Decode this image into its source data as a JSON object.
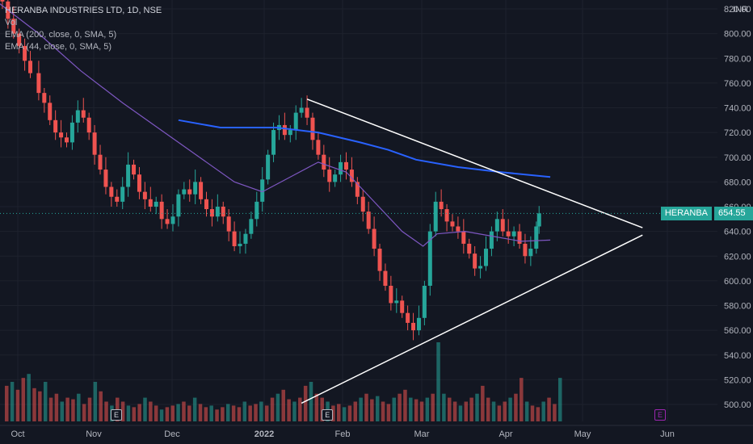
{
  "chart_data": {
    "type": "candlestick",
    "title": "HERANBA INDUSTRIES LTD, 1D, NSE",
    "volume_label": "Vol",
    "indicators": [
      {
        "label": "EMA (200, close, 0, SMA, 5)",
        "color": "#2962ff"
      },
      {
        "label": "EMA (44, close, 0, SMA, 5)",
        "color": "#7e57c2"
      }
    ],
    "currency": "INR",
    "last_price": 654.55,
    "symbol_label": "HERANBA",
    "y_ticks": [
      500,
      520,
      540,
      560,
      580,
      600,
      620,
      640,
      660,
      680,
      700,
      720,
      740,
      760,
      780,
      800,
      820
    ],
    "y_tick_labels": [
      "500.00",
      "520.00",
      "540.00",
      "560.00",
      "580.00",
      "600.00",
      "620.00",
      "640.00",
      "660.00",
      "680.00",
      "700.00",
      "720.00",
      "740.00",
      "760.00",
      "780.00",
      "800.00",
      "820.00"
    ],
    "x_labels": [
      "Oct",
      "Nov",
      "Dec",
      "2022",
      "Feb",
      "Mar",
      "Apr",
      "May",
      "Jun"
    ],
    "ylim": [
      488,
      826
    ],
    "colors": {
      "up": "#26a69a",
      "down": "#ef5350",
      "bg": "#131722",
      "grid": "#1e222d",
      "text": "#b2b5be"
    },
    "close_path": [
      [
        0,
        836
      ],
      [
        4,
        826
      ],
      [
        8,
        812
      ],
      [
        12,
        800
      ],
      [
        16,
        790
      ],
      [
        20,
        778
      ],
      [
        24,
        768
      ],
      [
        30,
        752
      ],
      [
        34,
        744
      ],
      [
        38,
        730
      ],
      [
        42,
        720
      ],
      [
        46,
        716
      ],
      [
        50,
        712
      ],
      [
        54,
        728
      ],
      [
        58,
        738
      ],
      [
        62,
        732
      ],
      [
        66,
        720
      ],
      [
        70,
        702
      ],
      [
        74,
        690
      ],
      [
        78,
        676
      ],
      [
        82,
        668
      ],
      [
        86,
        664
      ],
      [
        90,
        676
      ],
      [
        94,
        694
      ],
      [
        98,
        686
      ],
      [
        102,
        672
      ],
      [
        106,
        666
      ],
      [
        110,
        660
      ],
      [
        114,
        664
      ],
      [
        118,
        650
      ],
      [
        122,
        646
      ],
      [
        126,
        652
      ],
      [
        130,
        670
      ],
      [
        134,
        674
      ],
      [
        138,
        670
      ],
      [
        142,
        680
      ],
      [
        146,
        666
      ],
      [
        150,
        658
      ],
      [
        154,
        652
      ],
      [
        158,
        660
      ],
      [
        162,
        652
      ],
      [
        166,
        640
      ],
      [
        170,
        628
      ],
      [
        174,
        630
      ],
      [
        178,
        638
      ],
      [
        182,
        650
      ],
      [
        186,
        664
      ],
      [
        190,
        682
      ],
      [
        194,
        702
      ],
      [
        198,
        722
      ],
      [
        202,
        726
      ],
      [
        206,
        718
      ],
      [
        210,
        722
      ],
      [
        214,
        736
      ],
      [
        218,
        740
      ],
      [
        222,
        732
      ],
      [
        226,
        714
      ],
      [
        230,
        702
      ],
      [
        234,
        690
      ],
      [
        238,
        680
      ],
      [
        242,
        686
      ],
      [
        246,
        696
      ],
      [
        250,
        690
      ],
      [
        254,
        680
      ],
      [
        258,
        668
      ],
      [
        262,
        656
      ],
      [
        266,
        642
      ],
      [
        270,
        626
      ],
      [
        274,
        608
      ],
      [
        278,
        596
      ],
      [
        282,
        582
      ],
      [
        286,
        584
      ],
      [
        290,
        574
      ],
      [
        294,
        566
      ],
      [
        298,
        560
      ],
      [
        302,
        570
      ],
      [
        306,
        596
      ],
      [
        310,
        640
      ],
      [
        314,
        664
      ],
      [
        318,
        658
      ],
      [
        322,
        648
      ],
      [
        326,
        644
      ],
      [
        330,
        640
      ],
      [
        334,
        630
      ],
      [
        338,
        622
      ],
      [
        342,
        610
      ],
      [
        346,
        612
      ],
      [
        350,
        626
      ],
      [
        354,
        640
      ],
      [
        358,
        650
      ],
      [
        362,
        640
      ],
      [
        366,
        636
      ],
      [
        370,
        640
      ],
      [
        374,
        630
      ],
      [
        378,
        620
      ],
      [
        382,
        626
      ],
      [
        386,
        644
      ],
      [
        388,
        654.55
      ]
    ],
    "ema200": [
      [
        130,
        730
      ],
      [
        160,
        724
      ],
      [
        200,
        724
      ],
      [
        230,
        720
      ],
      [
        260,
        712
      ],
      [
        280,
        706
      ],
      [
        300,
        698
      ],
      [
        330,
        692
      ],
      [
        360,
        688
      ],
      [
        396,
        684
      ]
    ],
    "ema44": [
      [
        0,
        826
      ],
      [
        30,
        800
      ],
      [
        60,
        770
      ],
      [
        90,
        744
      ],
      [
        120,
        720
      ],
      [
        145,
        700
      ],
      [
        170,
        680
      ],
      [
        190,
        672
      ],
      [
        210,
        684
      ],
      [
        230,
        696
      ],
      [
        250,
        688
      ],
      [
        270,
        664
      ],
      [
        290,
        640
      ],
      [
        305,
        628
      ],
      [
        315,
        638
      ],
      [
        335,
        640
      ],
      [
        355,
        636
      ],
      [
        375,
        632
      ],
      [
        396,
        633
      ]
    ],
    "trendlines": [
      {
        "from": [
          222,
          747
        ],
        "to": [
          462,
          643
        ]
      },
      {
        "from": [
          218,
          501
        ],
        "to": [
          462,
          637
        ]
      }
    ],
    "volume_relative": [
      0.45,
      0.5,
      0.4,
      0.55,
      0.6,
      0.42,
      0.38,
      0.5,
      0.3,
      0.35,
      0.25,
      0.3,
      0.28,
      0.35,
      0.22,
      0.3,
      0.5,
      0.38,
      0.25,
      0.2,
      0.3,
      0.25,
      0.2,
      0.18,
      0.22,
      0.3,
      0.25,
      0.2,
      0.15,
      0.18,
      0.2,
      0.22,
      0.25,
      0.2,
      0.3,
      0.22,
      0.18,
      0.2,
      0.15,
      0.18,
      0.22,
      0.2,
      0.18,
      0.25,
      0.2,
      0.22,
      0.25,
      0.2,
      0.3,
      0.35,
      0.4,
      0.28,
      0.25,
      0.3,
      0.45,
      0.5,
      0.35,
      0.3,
      0.25,
      0.2,
      0.22,
      0.18,
      0.2,
      0.25,
      0.3,
      0.35,
      0.28,
      0.32,
      0.25,
      0.22,
      0.3,
      0.35,
      0.4,
      0.3,
      0.28,
      0.25,
      0.3,
      0.35,
      1.0,
      0.35,
      0.3,
      0.25,
      0.2,
      0.25,
      0.3,
      0.35,
      0.45,
      0.3,
      0.25,
      0.2,
      0.25,
      0.3,
      0.35,
      0.55,
      0.25,
      0.2,
      0.18,
      0.25,
      0.3,
      0.22,
      0.55
    ],
    "earnings_markers": [
      {
        "label": "E",
        "x_day": 85,
        "future": false
      },
      {
        "label": "E",
        "x_day": 236,
        "future": false
      },
      {
        "label": "E",
        "x_day": 474,
        "future": true
      }
    ]
  }
}
